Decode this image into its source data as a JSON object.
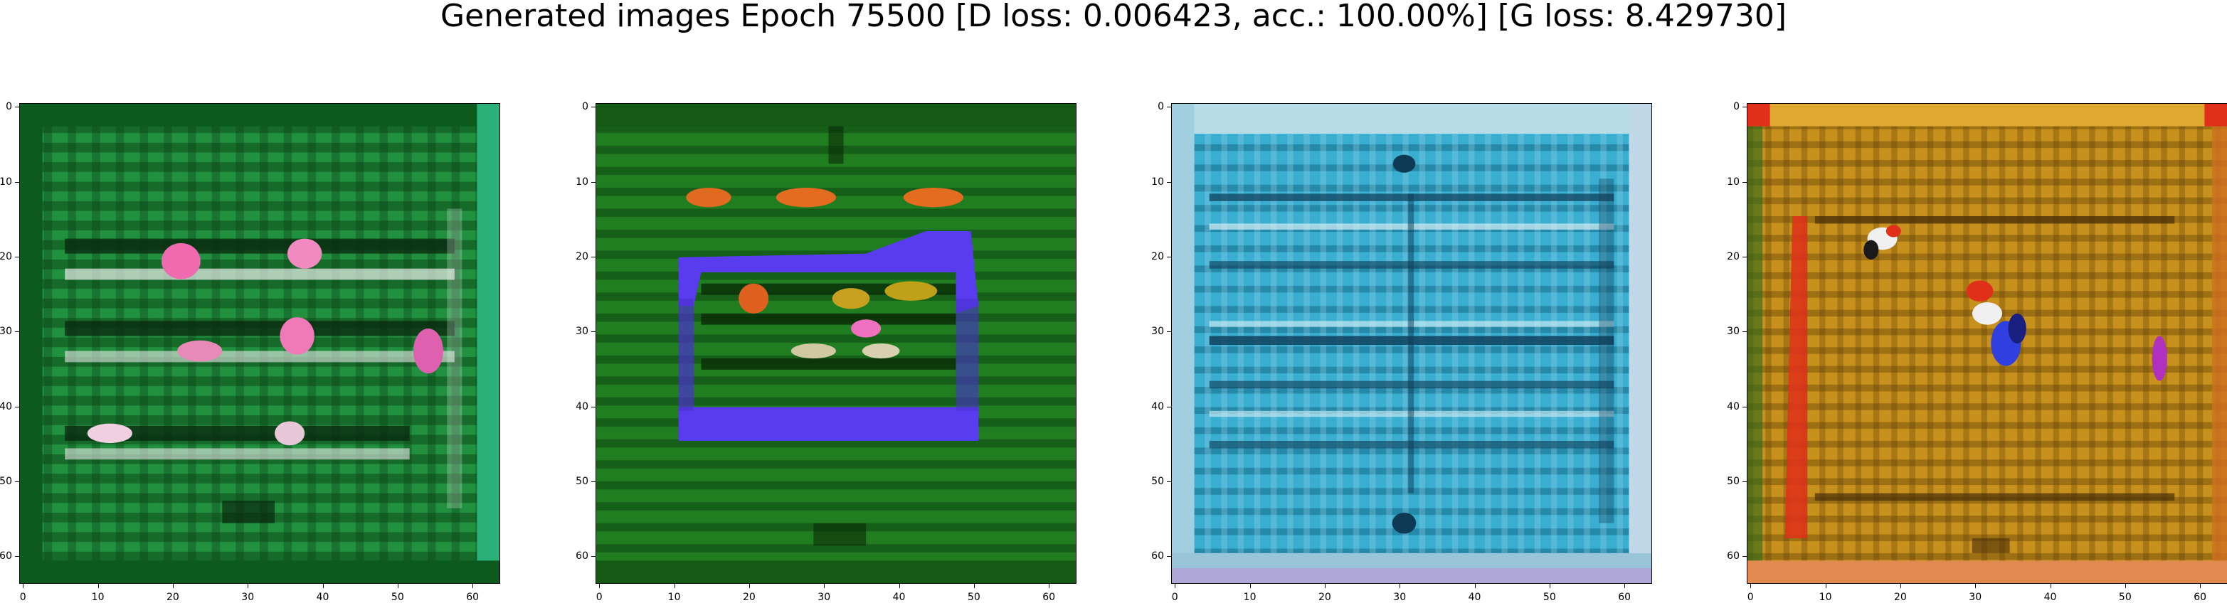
{
  "title": "Generated images Epoch 75500 [D loss: 0.006423, acc.: 100.00%] [G loss: 8.429730]",
  "axes": {
    "xticks": [
      "0",
      "10",
      "20",
      "30",
      "40",
      "50",
      "60"
    ],
    "yticks": [
      "0",
      "10",
      "20",
      "30",
      "40",
      "50",
      "60"
    ]
  },
  "panels": [
    {
      "name": "generated-image-1",
      "base_color": "#1e8a3a",
      "accent_color": "#f06ab0"
    },
    {
      "name": "generated-image-2",
      "base_color": "#1f7a1e",
      "accent_color": "#5a3cf0"
    },
    {
      "name": "generated-image-3",
      "base_color": "#3aaed0",
      "accent_color": "#0d3a55"
    },
    {
      "name": "generated-image-4",
      "base_color": "#c8901c",
      "accent_color": "#e0301a"
    }
  ]
}
